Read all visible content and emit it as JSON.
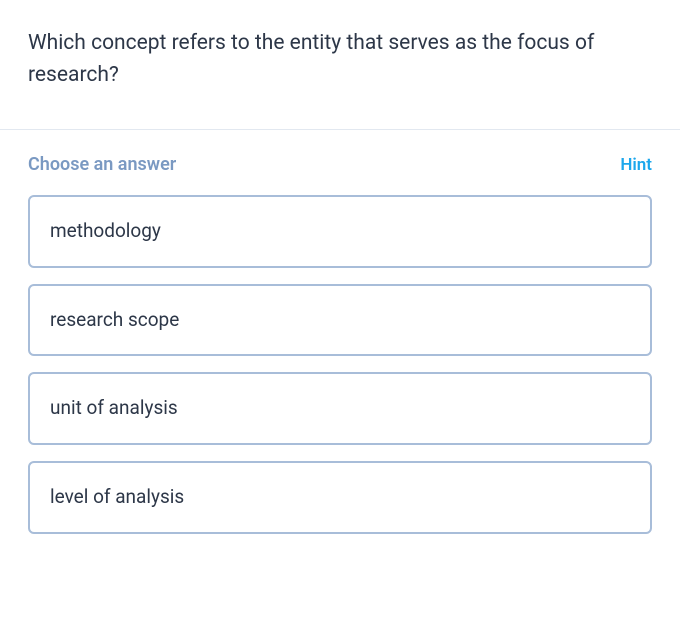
{
  "question": {
    "text": "Which concept refers to the entity that serves as the focus of research?",
    "text_color": "#2d3748",
    "fontsize": 21
  },
  "answer_header": {
    "choose_label": "Choose an answer",
    "choose_color": "#7a99c2",
    "hint_label": "Hint",
    "hint_color": "#1ca7ec"
  },
  "options": [
    {
      "label": "methodology"
    },
    {
      "label": "research scope"
    },
    {
      "label": "unit of analysis"
    },
    {
      "label": "level of analysis"
    }
  ],
  "styles": {
    "option_border_color": "#a8bdd9",
    "option_text_color": "#2d3748",
    "divider_color": "#e2e8f0",
    "background_color": "#ffffff"
  }
}
